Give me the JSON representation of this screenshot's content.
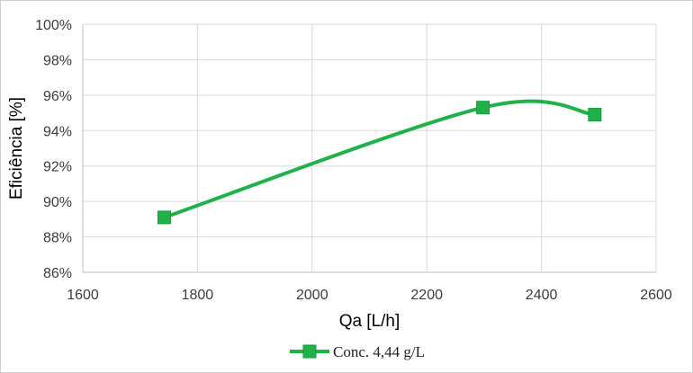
{
  "chart_data": {
    "type": "line",
    "xlabel": "Qa [L/h]",
    "ylabel": "Eficiência [%]",
    "xlim": [
      1600,
      2600
    ],
    "ylim": [
      86,
      100
    ],
    "xticks": [
      1600,
      1800,
      2000,
      2200,
      2400,
      2600
    ],
    "yticks": [
      86,
      88,
      90,
      92,
      94,
      96,
      98,
      100
    ],
    "xtick_labels": [
      "1600",
      "1800",
      "2000",
      "2200",
      "2400",
      "2600"
    ],
    "ytick_labels": [
      "86%",
      "88%",
      "90%",
      "92%",
      "94%",
      "96%",
      "98%",
      "100%"
    ],
    "grid": true,
    "smooth": true,
    "legend_position": "bottom",
    "series": [
      {
        "name": "Conc. 4,44 g/L",
        "color": "#21b14b",
        "marker": "square",
        "x": [
          1742,
          2298,
          2493
        ],
        "y": [
          89.1,
          95.3,
          94.9
        ]
      }
    ]
  }
}
